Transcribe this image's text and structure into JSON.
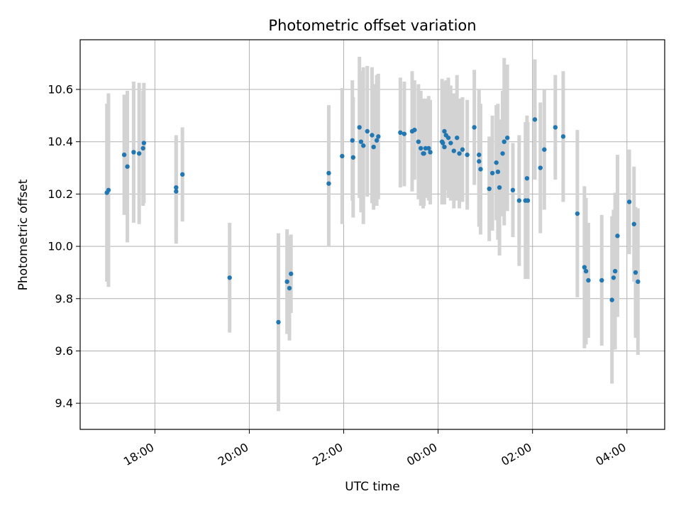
{
  "chart_data": {
    "type": "scatter",
    "title": "Photometric offset variation",
    "xlabel": "UTC time",
    "ylabel": "Photometric offset",
    "x_unit": "hours (UTC, continues past midnight)",
    "xlim": [
      "16:25",
      "28:48"
    ],
    "ylim": [
      9.3,
      10.79
    ],
    "grid": true,
    "x_ticks": [
      {
        "value": "18:00",
        "label": "18:00"
      },
      {
        "value": "20:00",
        "label": "20:00"
      },
      {
        "value": "22:00",
        "label": "22:00"
      },
      {
        "value": "24:00",
        "label": "00:00"
      },
      {
        "value": "26:00",
        "label": "02:00"
      },
      {
        "value": "28:00",
        "label": "04:00"
      }
    ],
    "y_ticks": [
      {
        "value": 9.4,
        "label": "9.4"
      },
      {
        "value": 9.6,
        "label": "9.6"
      },
      {
        "value": 9.8,
        "label": "9.8"
      },
      {
        "value": 10.0,
        "label": "10.0"
      },
      {
        "value": 10.2,
        "label": "10.2"
      },
      {
        "value": 10.4,
        "label": "10.4"
      },
      {
        "value": 10.6,
        "label": "10.6"
      }
    ],
    "colors": {
      "point": "#1f77b4",
      "error_bar": "#d3d3d3",
      "grid": "#b0b0b0"
    },
    "series": [
      {
        "x": [
          "16:59",
          "17:01",
          "17:21",
          "17:25",
          "17:33",
          "17:40",
          "17:45",
          "17:46",
          "18:27",
          "18:27",
          "18:35",
          "19:35",
          "20:37",
          "20:48",
          "20:51",
          "20:53",
          "21:41",
          "21:41",
          "21:58",
          "22:11",
          "22:12",
          "22:20",
          "22:22",
          "22:25",
          "22:30",
          "22:36",
          "22:38",
          "22:42",
          "22:44",
          "23:12",
          "23:17",
          "23:27",
          "23:30",
          "23:35",
          "23:38",
          "23:41",
          "23:42",
          "23:44",
          "23:48",
          "23:50",
          "24:05",
          "24:06",
          "24:08",
          "24:08",
          "24:10",
          "24:13",
          "24:16",
          "24:20",
          "24:24",
          "24:27",
          "24:31",
          "24:37",
          "24:46",
          "24:52",
          "24:52",
          "24:54",
          "25:05",
          "25:09",
          "25:14",
          "25:16",
          "25:18",
          "25:22",
          "25:24",
          "25:28",
          "25:35",
          "25:43",
          "25:51",
          "25:53",
          "25:54",
          "26:03",
          "26:10",
          "26:15",
          "26:29",
          "26:39",
          "26:57",
          "27:06",
          "27:08",
          "27:11",
          "27:28",
          "27:41",
          "27:43",
          "27:45",
          "27:48",
          "28:03",
          "28:09",
          "28:11",
          "28:14"
        ],
        "y": [
          10.205,
          10.215,
          10.35,
          10.305,
          10.36,
          10.355,
          10.375,
          10.395,
          10.225,
          10.21,
          10.275,
          9.88,
          9.71,
          9.865,
          9.84,
          9.895,
          10.28,
          10.24,
          10.345,
          10.405,
          10.34,
          10.455,
          10.4,
          10.385,
          10.44,
          10.425,
          10.38,
          10.405,
          10.42,
          10.435,
          10.43,
          10.44,
          10.445,
          10.4,
          10.375,
          10.355,
          10.355,
          10.375,
          10.375,
          10.36,
          10.4,
          10.395,
          10.38,
          10.44,
          10.425,
          10.415,
          10.395,
          10.365,
          10.415,
          10.355,
          10.37,
          10.35,
          10.455,
          10.35,
          10.325,
          10.295,
          10.22,
          10.28,
          10.32,
          10.285,
          10.225,
          10.355,
          10.4,
          10.415,
          10.215,
          10.175,
          10.175,
          10.26,
          10.175,
          10.485,
          10.3,
          10.37,
          10.455,
          10.42,
          10.125,
          9.92,
          9.905,
          9.87,
          9.87,
          9.795,
          9.88,
          9.905,
          10.04,
          10.17,
          10.085,
          9.9,
          9.865
        ],
        "error": [
          0.34,
          0.37,
          0.23,
          0.29,
          0.27,
          0.27,
          0.22,
          0.23,
          0.2,
          0.2,
          0.18,
          0.21,
          0.34,
          0.2,
          0.2,
          0.15,
          0.26,
          0.24,
          0.26,
          0.23,
          0.23,
          0.27,
          0.27,
          0.3,
          0.25,
          0.26,
          0.24,
          0.25,
          0.24,
          0.21,
          0.2,
          0.23,
          0.19,
          0.22,
          0.22,
          0.21,
          0.2,
          0.19,
          0.2,
          0.2,
          0.24,
          0.23,
          0.22,
          0.19,
          0.21,
          0.23,
          0.22,
          0.22,
          0.24,
          0.21,
          0.2,
          0.21,
          0.22,
          0.25,
          0.25,
          0.25,
          0.2,
          0.22,
          0.22,
          0.26,
          0.26,
          0.24,
          0.32,
          0.28,
          0.18,
          0.25,
          0.3,
          0.24,
          0.3,
          0.23,
          0.25,
          0.23,
          0.2,
          0.25,
          0.32,
          0.31,
          0.28,
          0.22,
          0.25,
          0.32,
          0.26,
          0.3,
          0.31,
          0.2,
          0.22,
          0.25,
          0.28
        ]
      }
    ]
  }
}
